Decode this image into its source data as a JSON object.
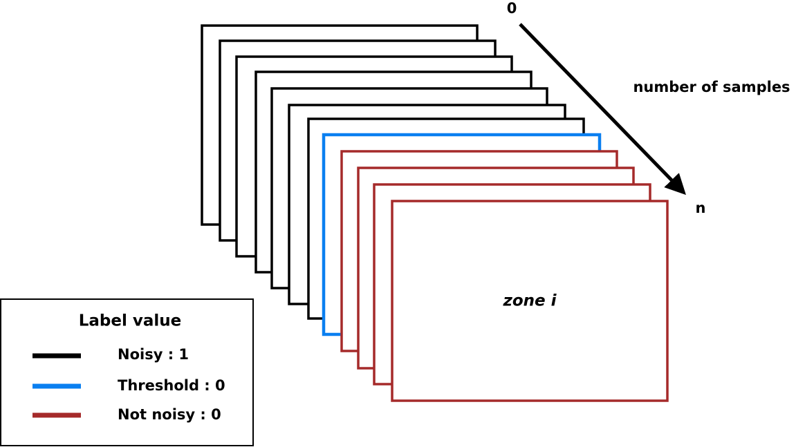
{
  "axis": {
    "start": "0",
    "label": "number of samples",
    "end": "n"
  },
  "zone_label": "zone i",
  "legend": {
    "title": "Label value",
    "items": [
      "Noisy : 1",
      "Threshold : 0",
      "Not noisy : 0"
    ]
  }
}
